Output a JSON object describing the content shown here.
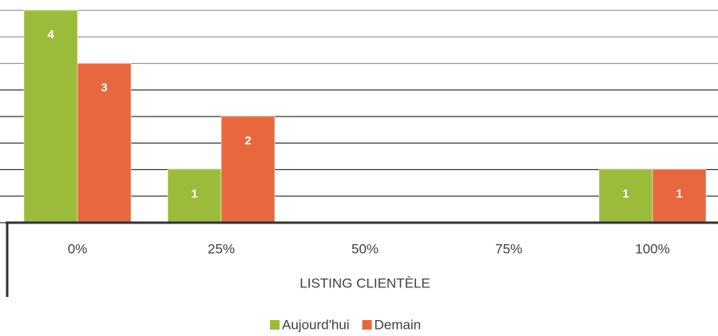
{
  "chart_data": {
    "type": "bar",
    "x_label": "LISTING CLIENTÈLE",
    "categories": [
      "0%",
      "25%",
      "50%",
      "75%",
      "100%"
    ],
    "series": [
      {
        "name": "Aujourd'hui",
        "color": "#9bbb3b",
        "values": [
          4,
          1,
          0,
          0,
          1
        ]
      },
      {
        "name": "Demain",
        "color": "#e8673f",
        "values": [
          3,
          2,
          0,
          0,
          1
        ]
      }
    ],
    "ylim": [
      0,
      4
    ],
    "yticks": [
      0,
      0.5,
      1,
      1.5,
      2,
      2.5,
      3,
      3.5,
      4
    ],
    "grid": true,
    "legend": "bottom"
  }
}
